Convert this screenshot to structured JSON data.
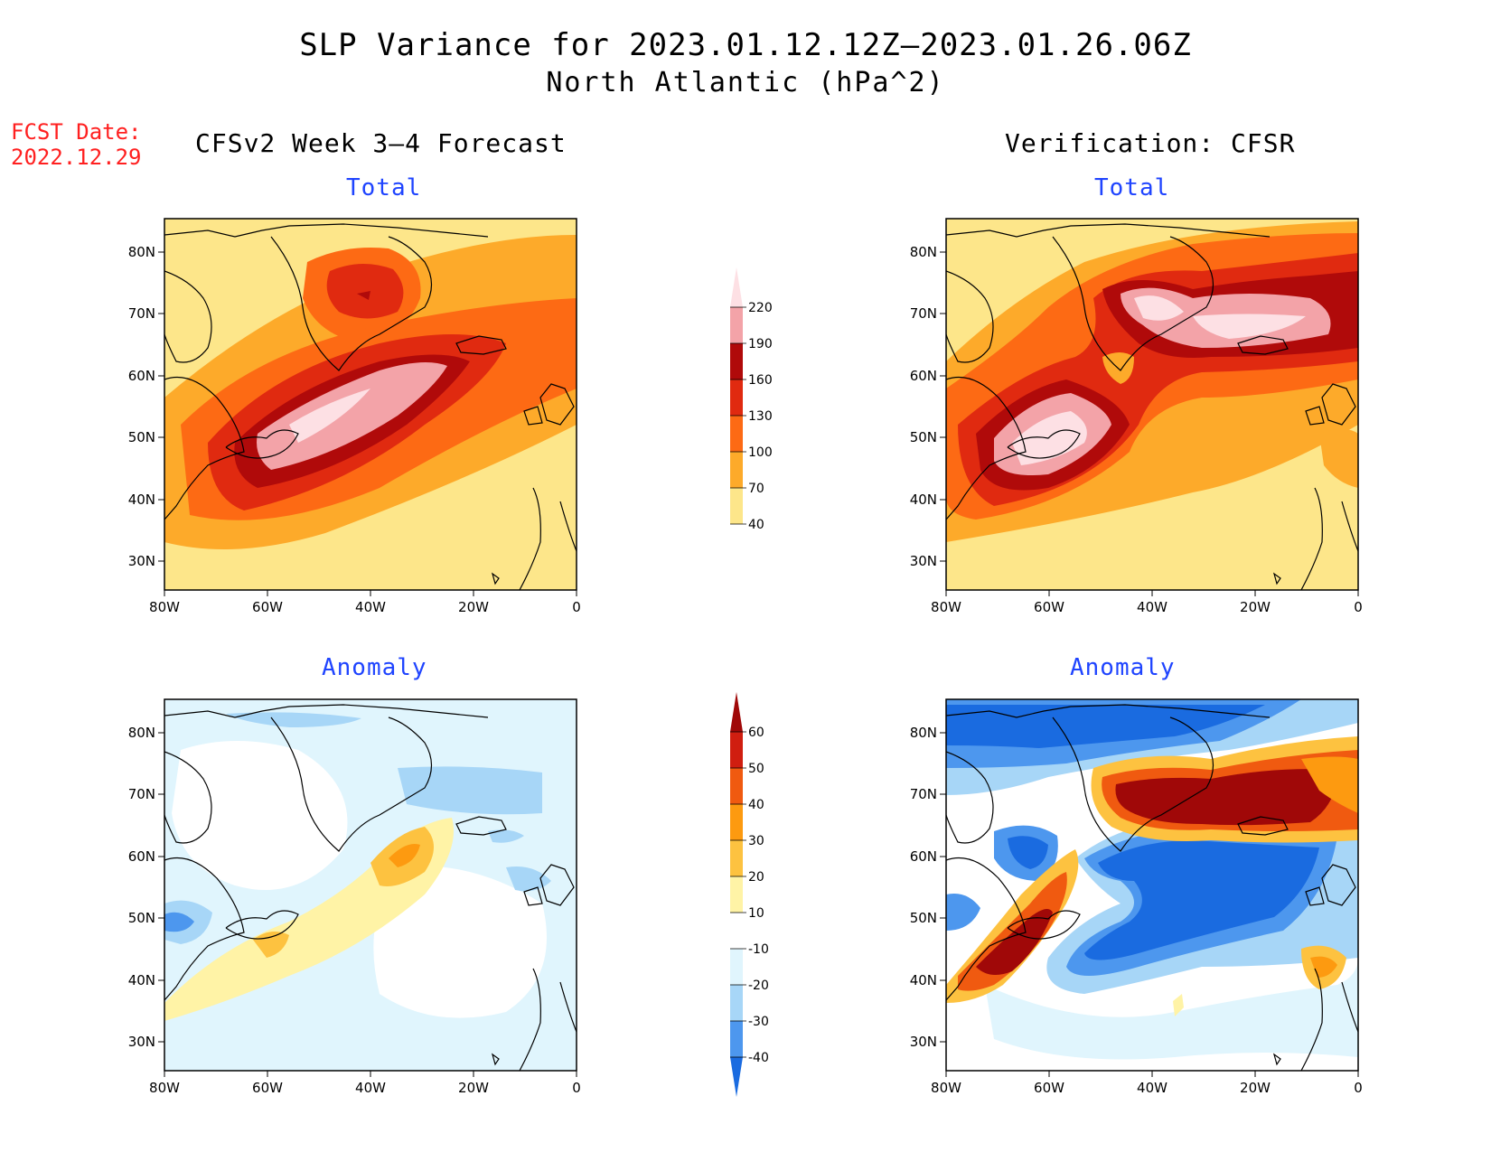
{
  "title": "SLP Variance for 2023.01.12.12Z—2023.01.26.06Z",
  "subtitle": "North Atlantic (hPa^2)",
  "fcst_label": "FCST Date:",
  "fcst_date": "2022.12.29",
  "columns": {
    "left": "CFSv2 Week 3—4 Forecast",
    "right": "Verification: CFSR"
  },
  "panel_titles": {
    "total": "Total",
    "anomaly": "Anomaly"
  },
  "axes": {
    "lon_labels": [
      "80W",
      "60W",
      "40W",
      "20W",
      "0"
    ],
    "lat_labels": [
      "80N",
      "70N",
      "60N",
      "50N",
      "40N",
      "30N"
    ],
    "lon_range": [
      -80,
      0
    ],
    "lat_range": [
      25,
      85
    ]
  },
  "colorbars": {
    "total": {
      "levels": [
        40,
        70,
        100,
        130,
        160,
        190,
        220
      ],
      "colors": [
        "#fde68a",
        "#fdaa2a",
        "#fd6a14",
        "#e02a10",
        "#b00a0a",
        "#f3a3a8",
        "#fde0e4"
      ]
    },
    "anomaly": {
      "levels": [
        -40,
        -30,
        -20,
        -10,
        10,
        20,
        30,
        40,
        50,
        60
      ],
      "colors": [
        "#1a6be0",
        "#4d97ee",
        "#a7d6f7",
        "#e0f5fd",
        "#ffffff",
        "#fff3a6",
        "#fdc240",
        "#fd9a10",
        "#f05a10",
        "#d01e10",
        "#a00808"
      ]
    }
  },
  "chart_data": [
    {
      "type": "heatmap",
      "panel": "CFSv2 Week 3-4 Forecast – Total",
      "field": "SLP variance",
      "max_region": "Newfoundland to mid-Atlantic, > 220",
      "secondary_max": "central Greenland, 160-190"
    },
    {
      "type": "heatmap",
      "panel": "Verification: CFSR – Total",
      "field": "SLP variance",
      "max_region": "Newfoundland and Iceland/Denmark Strait, > 220"
    },
    {
      "type": "heatmap",
      "panel": "CFSv2 Week 3-4 Forecast – Anomaly",
      "field": "SLP variance anomaly",
      "max_region": "south of Greenland, 40-50",
      "min_region": "Labrador Sea / west Atlantic, -20 to -30"
    },
    {
      "type": "heatmap",
      "panel": "Verification: CFSR – Anomaly",
      "field": "SLP variance anomaly",
      "max_region": "Iceland/Norwegian Sea and Nova Scotia, > 60",
      "min_region": "central North Atlantic, < -40"
    }
  ]
}
